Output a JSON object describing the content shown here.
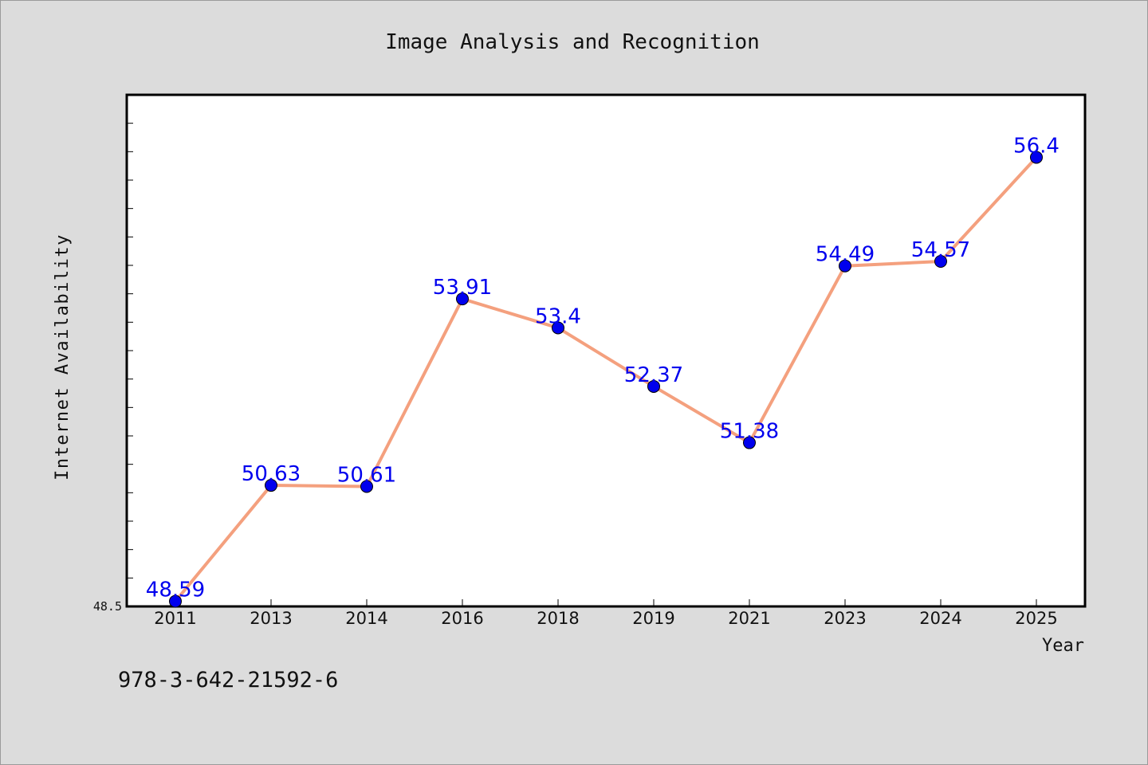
{
  "chart_data": {
    "type": "line",
    "title": "Image Analysis and Recognition",
    "xlabel": "Year",
    "ylabel": "Internet Availability",
    "categories": [
      "2011",
      "2013",
      "2014",
      "2016",
      "2018",
      "2019",
      "2021",
      "2023",
      "2024",
      "2025"
    ],
    "values": [
      48.59,
      50.63,
      50.61,
      53.91,
      53.4,
      52.37,
      51.38,
      54.49,
      54.57,
      56.4
    ],
    "data_labels": [
      "48.59",
      "50.63",
      "50.61",
      "53.91",
      "53.4",
      "52.37",
      "51.38",
      "54.49",
      "54.57",
      "56.4"
    ],
    "ylim": [
      48.5,
      57.5
    ],
    "y_tick_labels": [
      "48.5"
    ],
    "grid": false,
    "legend": "none",
    "colors": {
      "line": "#f4a07e",
      "marker": "#0000ee",
      "label": "#0000ee",
      "plot_bg": "#ffffff",
      "page_bg": "#dcdcdc"
    }
  },
  "footer": {
    "isbn": "978-3-642-21592-6"
  }
}
